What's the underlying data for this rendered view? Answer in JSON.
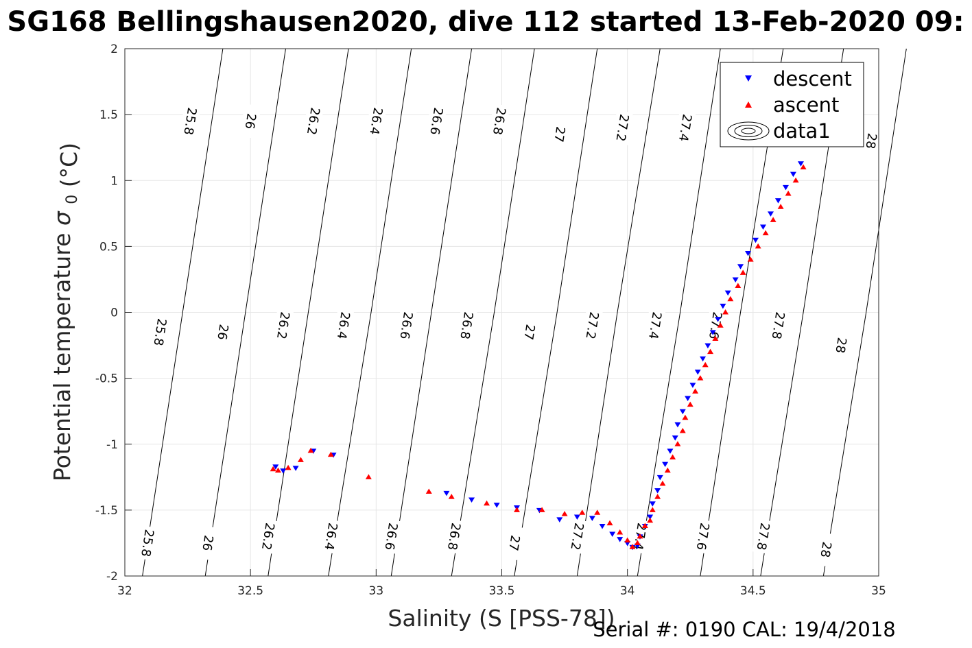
{
  "chart_data": {
    "type": "scatter",
    "title": "SG168 Bellingshausen2020, dive 112 started 13-Feb-2020 09:",
    "xlabel": "Salinity (S [PSS-78])",
    "ylabel": "Potential temperature",
    "ylabel_symbol": "σ",
    "ylabel_sub": "0",
    "ylabel_unit": "(°C)",
    "footer": "Serial #: 0190  CAL: 19/4/2018",
    "xlim": [
      32,
      35
    ],
    "ylim": [
      -2,
      2
    ],
    "xticks": [
      32,
      32.5,
      33,
      33.5,
      34,
      34.5,
      35
    ],
    "xtick_labels": [
      "32",
      "32.5",
      "33",
      "33.5",
      "34",
      "34.5",
      "35"
    ],
    "yticks": [
      2,
      1.5,
      1,
      0.5,
      0,
      -0.5,
      -1,
      -1.5,
      -2
    ],
    "ytick_labels": [
      "2",
      "1.5",
      "1",
      "0.5",
      "0",
      "-0.5",
      "-1",
      "-1.5",
      "-2"
    ],
    "grid": true,
    "legend_position": "top-right",
    "legend": [
      {
        "label": "descent",
        "marker": "triangle-down",
        "color": "#0000ff"
      },
      {
        "label": "ascent",
        "marker": "triangle-up",
        "color": "#ff0000"
      },
      {
        "label": "data1",
        "marker": "contour",
        "color": "#000000"
      }
    ],
    "contours": [
      {
        "label": "25.8",
        "line": [
          [
            32.07,
            -2
          ],
          [
            32.23,
            0
          ],
          [
            32.39,
            2
          ]
        ],
        "labels_at": [
          [
            32.09,
            -1.75
          ],
          [
            32.14,
            -0.15
          ],
          [
            32.26,
            1.45
          ]
        ]
      },
      {
        "label": "26",
        "line": [
          [
            32.32,
            -2
          ],
          [
            32.48,
            0
          ],
          [
            32.64,
            2
          ]
        ],
        "labels_at": [
          [
            32.33,
            -1.75
          ],
          [
            32.39,
            -0.15
          ],
          [
            32.5,
            1.45
          ]
        ]
      },
      {
        "label": "26.2",
        "line": [
          [
            32.57,
            -2
          ],
          [
            32.73,
            0
          ],
          [
            32.89,
            2
          ]
        ],
        "labels_at": [
          [
            32.57,
            -1.7
          ],
          [
            32.63,
            -0.1
          ],
          [
            32.75,
            1.45
          ]
        ]
      },
      {
        "label": "26.4",
        "line": [
          [
            32.81,
            -2
          ],
          [
            32.98,
            0
          ],
          [
            33.14,
            2
          ]
        ],
        "labels_at": [
          [
            32.82,
            -1.7
          ],
          [
            32.87,
            -0.1
          ],
          [
            33.0,
            1.45
          ]
        ]
      },
      {
        "label": "26.6",
        "line": [
          [
            33.06,
            -2
          ],
          [
            33.22,
            0
          ],
          [
            33.38,
            2
          ]
        ],
        "labels_at": [
          [
            33.06,
            -1.7
          ],
          [
            33.12,
            -0.1
          ],
          [
            33.24,
            1.45
          ]
        ]
      },
      {
        "label": "26.8",
        "line": [
          [
            33.3,
            -2
          ],
          [
            33.47,
            0
          ],
          [
            33.63,
            2
          ]
        ],
        "labels_at": [
          [
            33.31,
            -1.7
          ],
          [
            33.36,
            -0.1
          ],
          [
            33.49,
            1.45
          ]
        ]
      },
      {
        "label": "27",
        "line": [
          [
            33.55,
            -2
          ],
          [
            33.72,
            0
          ],
          [
            33.88,
            2
          ]
        ],
        "labels_at": [
          [
            33.55,
            -1.75
          ],
          [
            33.61,
            -0.15
          ],
          [
            33.73,
            1.35
          ]
        ]
      },
      {
        "label": "27.2",
        "line": [
          [
            33.8,
            -2
          ],
          [
            33.96,
            0
          ],
          [
            34.13,
            2
          ]
        ],
        "labels_at": [
          [
            33.8,
            -1.7
          ],
          [
            33.86,
            -0.1
          ],
          [
            33.98,
            1.4
          ]
        ]
      },
      {
        "label": "27.4",
        "line": [
          [
            34.04,
            -2
          ],
          [
            34.21,
            0
          ],
          [
            34.37,
            2
          ]
        ],
        "labels_at": [
          [
            34.05,
            -1.7
          ],
          [
            34.11,
            -0.1
          ],
          [
            34.23,
            1.4
          ]
        ]
      },
      {
        "label": "27.6",
        "line": [
          [
            34.29,
            -2
          ],
          [
            34.45,
            0
          ],
          [
            34.62,
            2
          ]
        ],
        "labels_at": [
          [
            34.3,
            -1.7
          ],
          [
            34.35,
            -0.1
          ],
          [
            34.47,
            1.4
          ]
        ]
      },
      {
        "label": "27.8",
        "line": [
          [
            34.53,
            -2
          ],
          [
            34.7,
            0
          ],
          [
            34.86,
            2
          ]
        ],
        "labels_at": [
          [
            34.54,
            -1.7
          ],
          [
            34.6,
            -0.1
          ],
          [
            34.72,
            1.4
          ]
        ]
      },
      {
        "label": "28",
        "line": [
          [
            34.78,
            -2
          ],
          [
            34.95,
            0
          ],
          [
            35.11,
            2
          ]
        ],
        "labels_at": [
          [
            34.79,
            -1.8
          ],
          [
            34.85,
            -0.25
          ],
          [
            34.97,
            1.3
          ]
        ]
      }
    ],
    "series": [
      {
        "name": "descent",
        "color": "#0000ff",
        "marker": "triangle-down",
        "x": [
          34.69,
          34.66,
          34.63,
          34.6,
          34.57,
          34.54,
          34.51,
          34.48,
          34.45,
          34.43,
          34.4,
          34.38,
          34.36,
          34.34,
          34.32,
          34.3,
          34.28,
          34.26,
          34.24,
          34.22,
          34.2,
          34.19,
          34.17,
          34.15,
          34.13,
          34.12,
          34.1,
          34.09,
          34.07,
          34.05,
          34.04,
          34.02,
          34.0,
          33.97,
          33.94,
          33.9,
          33.86,
          33.8,
          33.73,
          33.65,
          33.56,
          33.48,
          33.38,
          33.28,
          32.83,
          32.75,
          32.68,
          32.63,
          32.6
        ],
        "y": [
          1.13,
          1.05,
          0.95,
          0.85,
          0.75,
          0.65,
          0.55,
          0.45,
          0.35,
          0.25,
          0.15,
          0.05,
          -0.05,
          -0.15,
          -0.25,
          -0.35,
          -0.45,
          -0.55,
          -0.65,
          -0.75,
          -0.85,
          -0.95,
          -1.05,
          -1.15,
          -1.25,
          -1.35,
          -1.45,
          -1.55,
          -1.62,
          -1.7,
          -1.77,
          -1.78,
          -1.75,
          -1.72,
          -1.68,
          -1.62,
          -1.56,
          -1.55,
          -1.57,
          -1.5,
          -1.48,
          -1.46,
          -1.42,
          -1.37,
          -1.08,
          -1.05,
          -1.18,
          -1.2,
          -1.17
        ]
      },
      {
        "name": "ascent",
        "color": "#ff0000",
        "marker": "triangle-up",
        "x": [
          34.7,
          34.67,
          34.64,
          34.61,
          34.58,
          34.55,
          34.52,
          34.49,
          34.46,
          34.44,
          34.41,
          34.39,
          34.37,
          34.35,
          34.33,
          34.31,
          34.29,
          34.27,
          34.25,
          34.23,
          34.22,
          34.2,
          34.18,
          34.16,
          34.14,
          34.12,
          34.1,
          34.09,
          34.07,
          34.05,
          34.04,
          34.02,
          34.0,
          33.97,
          33.93,
          33.88,
          33.82,
          33.75,
          33.66,
          33.56,
          33.44,
          33.3,
          33.21,
          32.97,
          32.82,
          32.74,
          32.7,
          32.65,
          32.61,
          32.59
        ],
        "y": [
          1.1,
          1.0,
          0.9,
          0.8,
          0.7,
          0.6,
          0.5,
          0.4,
          0.3,
          0.2,
          0.1,
          0.0,
          -0.1,
          -0.2,
          -0.3,
          -0.4,
          -0.5,
          -0.6,
          -0.7,
          -0.8,
          -0.9,
          -1.0,
          -1.1,
          -1.2,
          -1.3,
          -1.4,
          -1.5,
          -1.58,
          -1.62,
          -1.7,
          -1.75,
          -1.78,
          -1.73,
          -1.67,
          -1.6,
          -1.52,
          -1.52,
          -1.53,
          -1.5,
          -1.5,
          -1.45,
          -1.4,
          -1.36,
          -1.25,
          -1.08,
          -1.05,
          -1.12,
          -1.18,
          -1.2,
          -1.19
        ]
      }
    ]
  }
}
